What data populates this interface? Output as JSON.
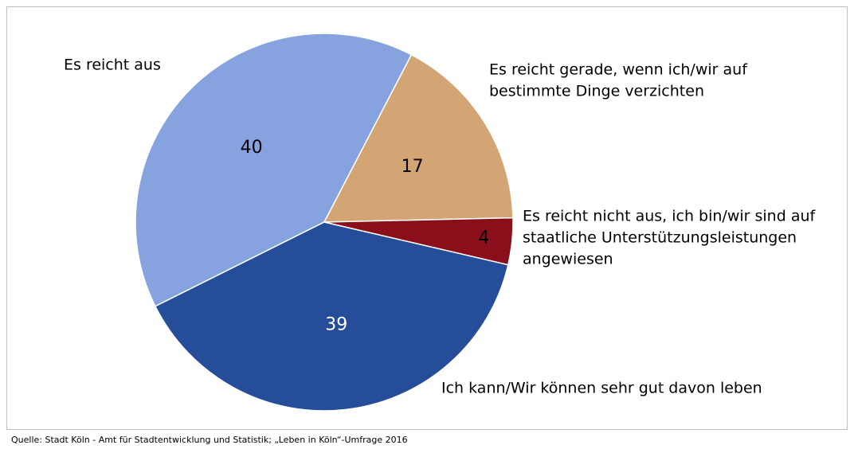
{
  "chart_data": {
    "type": "pie",
    "slices": [
      {
        "label": [
          "Es reicht aus"
        ],
        "value": 40,
        "color": "#86a3e0",
        "text_color": "#000000"
      },
      {
        "label": [
          "Es reicht gerade, wenn ich/wir auf",
          "bestimmte Dinge verzichten"
        ],
        "value": 17,
        "color": "#d3a574",
        "text_color": "#000000"
      },
      {
        "label": [
          "Es reicht nicht aus, ich bin/wir sind auf",
          "staatliche Unterstützungsleistungen",
          "angewiesen"
        ],
        "value": 4,
        "color": "#8b0f1a",
        "text_color": "#000000"
      },
      {
        "label": [
          "Ich kann/Wir können  sehr gut davon leben"
        ],
        "value": 39,
        "color": "#264d9a",
        "text_color": "#ffffff"
      }
    ],
    "source": "Quelle:  Stadt Köln - Amt für Stadtentwicklung und Statistik;  „Leben in Köln“-Umfrage 2016"
  }
}
